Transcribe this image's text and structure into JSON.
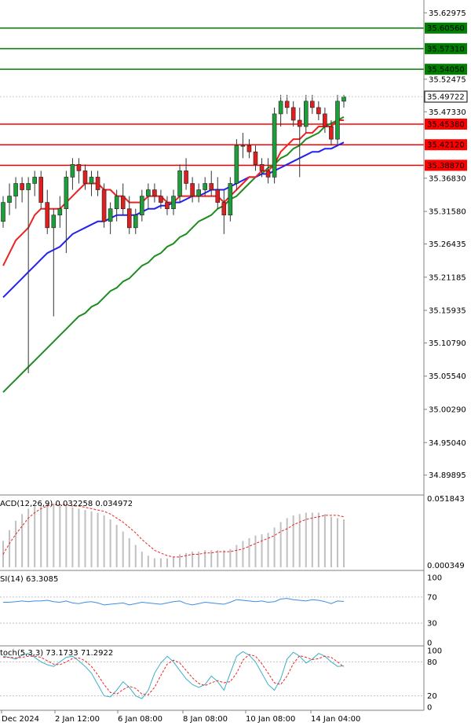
{
  "chart_data": {
    "type": "candlestick",
    "main": {
      "ylim": [
        34.87,
        35.65
      ],
      "y_ticks": [
        "35.62975",
        "35.52475",
        "35.47330",
        "35.36830",
        "35.31580",
        "35.26435",
        "35.21185",
        "35.15935",
        "35.10790",
        "35.05540",
        "35.00290",
        "34.95040",
        "34.89895"
      ],
      "hidden_tick": "35.57725",
      "level_lines": [
        {
          "label": "35.60560",
          "value": 35.6056,
          "color": "#008000"
        },
        {
          "label": "35.57310",
          "value": 35.5731,
          "color": "#008000"
        },
        {
          "label": "35.54050",
          "value": 35.5405,
          "color": "#008000"
        },
        {
          "label": "35.45380",
          "value": 35.4538,
          "color": "#ff0000"
        },
        {
          "label": "35.42120",
          "value": 35.4212,
          "color": "#ff0000"
        },
        {
          "label": "35.38870",
          "value": 35.3887,
          "color": "#ff0000"
        }
      ],
      "current_price": {
        "label": "35.49722",
        "value": 35.49722
      },
      "candles": [
        [
          35.3,
          35.34,
          35.29,
          35.33
        ],
        [
          35.33,
          35.36,
          35.31,
          35.34
        ],
        [
          35.34,
          35.37,
          35.32,
          35.36
        ],
        [
          35.36,
          35.37,
          35.33,
          35.35
        ],
        [
          35.35,
          35.37,
          35.06,
          35.36
        ],
        [
          35.36,
          35.38,
          35.34,
          35.37
        ],
        [
          35.37,
          35.38,
          35.32,
          35.33
        ],
        [
          35.33,
          35.35,
          35.28,
          35.29
        ],
        [
          35.29,
          35.32,
          35.15,
          35.31
        ],
        [
          35.31,
          35.34,
          35.29,
          35.32
        ],
        [
          35.32,
          35.38,
          35.25,
          35.37
        ],
        [
          35.37,
          35.4,
          35.35,
          35.39
        ],
        [
          35.39,
          35.4,
          35.36,
          35.38
        ],
        [
          35.38,
          35.39,
          35.35,
          35.36
        ],
        [
          35.36,
          35.38,
          35.34,
          35.37
        ],
        [
          35.37,
          35.38,
          35.34,
          35.35
        ],
        [
          35.35,
          35.36,
          35.29,
          35.3
        ],
        [
          35.3,
          35.33,
          35.28,
          35.32
        ],
        [
          35.32,
          35.35,
          35.3,
          35.34
        ],
        [
          35.34,
          35.36,
          35.31,
          35.32
        ],
        [
          35.32,
          35.34,
          35.28,
          35.29
        ],
        [
          35.29,
          35.32,
          35.28,
          35.31
        ],
        [
          35.31,
          35.35,
          35.3,
          35.34
        ],
        [
          35.34,
          35.36,
          35.32,
          35.35
        ],
        [
          35.35,
          35.36,
          35.33,
          35.34
        ],
        [
          35.34,
          35.35,
          35.32,
          35.33
        ],
        [
          35.33,
          35.34,
          35.31,
          35.32
        ],
        [
          35.32,
          35.35,
          35.31,
          35.34
        ],
        [
          35.34,
          35.39,
          35.33,
          35.38
        ],
        [
          35.38,
          35.4,
          35.35,
          35.36
        ],
        [
          35.36,
          35.37,
          35.33,
          35.34
        ],
        [
          35.34,
          35.36,
          35.33,
          35.35
        ],
        [
          35.35,
          35.37,
          35.34,
          35.36
        ],
        [
          35.36,
          35.38,
          35.34,
          35.35
        ],
        [
          35.35,
          35.37,
          35.32,
          35.33
        ],
        [
          35.33,
          35.35,
          35.28,
          35.31
        ],
        [
          35.31,
          35.37,
          35.3,
          35.36
        ],
        [
          35.36,
          35.43,
          35.35,
          35.42
        ],
        [
          35.42,
          35.44,
          35.4,
          35.42
        ],
        [
          35.42,
          35.43,
          35.4,
          35.41
        ],
        [
          35.41,
          35.42,
          35.38,
          35.39
        ],
        [
          35.39,
          35.4,
          35.37,
          35.38
        ],
        [
          35.38,
          35.4,
          35.36,
          35.37
        ],
        [
          35.37,
          35.48,
          35.36,
          35.47
        ],
        [
          35.47,
          35.5,
          35.45,
          35.49
        ],
        [
          35.49,
          35.5,
          35.47,
          35.48
        ],
        [
          35.48,
          35.49,
          35.45,
          35.46
        ],
        [
          35.46,
          35.48,
          35.37,
          35.45
        ],
        [
          35.45,
          35.5,
          35.44,
          35.49
        ],
        [
          35.49,
          35.5,
          35.47,
          35.48
        ],
        [
          35.48,
          35.49,
          35.46,
          35.47
        ],
        [
          35.47,
          35.48,
          35.44,
          35.45
        ],
        [
          35.45,
          35.46,
          35.42,
          35.43
        ],
        [
          35.43,
          35.5,
          35.42,
          35.49
        ],
        [
          35.49,
          35.5,
          35.48,
          35.497
        ]
      ],
      "ma_fast": [
        35.23,
        35.25,
        35.27,
        35.28,
        35.29,
        35.31,
        35.32,
        35.32,
        35.32,
        35.32,
        35.33,
        35.34,
        35.35,
        35.36,
        35.36,
        35.36,
        35.35,
        35.35,
        35.34,
        35.34,
        35.33,
        35.33,
        35.33,
        35.34,
        35.34,
        35.34,
        35.33,
        35.33,
        35.34,
        35.34,
        35.34,
        35.34,
        35.34,
        35.34,
        35.34,
        35.33,
        35.34,
        35.35,
        35.36,
        35.37,
        35.37,
        35.38,
        35.38,
        35.39,
        35.41,
        35.42,
        35.43,
        35.43,
        35.44,
        35.44,
        35.45,
        35.45,
        35.45,
        35.46,
        35.46
      ],
      "ma_mid": [
        35.18,
        35.19,
        35.2,
        35.21,
        35.22,
        35.23,
        35.24,
        35.25,
        35.255,
        35.26,
        35.27,
        35.28,
        35.285,
        35.29,
        35.295,
        35.3,
        35.3,
        35.305,
        35.31,
        35.31,
        35.31,
        35.31,
        35.315,
        35.32,
        35.32,
        35.325,
        35.325,
        35.33,
        35.33,
        35.335,
        35.34,
        35.34,
        35.345,
        35.35,
        35.35,
        35.35,
        35.355,
        35.36,
        35.365,
        35.37,
        35.37,
        35.375,
        35.375,
        35.38,
        35.385,
        35.39,
        35.395,
        35.4,
        35.405,
        35.41,
        35.41,
        35.415,
        35.415,
        35.42,
        35.425
      ],
      "ma_slow": [
        35.03,
        35.04,
        35.05,
        35.06,
        35.07,
        35.08,
        35.09,
        35.1,
        35.11,
        35.12,
        35.13,
        35.14,
        35.15,
        35.155,
        35.165,
        35.17,
        35.18,
        35.19,
        35.195,
        35.205,
        35.21,
        35.22,
        35.23,
        35.235,
        35.245,
        35.25,
        35.26,
        35.265,
        35.275,
        35.28,
        35.29,
        35.3,
        35.305,
        35.31,
        35.32,
        35.325,
        35.335,
        35.34,
        35.35,
        35.36,
        35.37,
        35.375,
        35.385,
        35.39,
        35.4,
        35.405,
        35.415,
        35.42,
        35.43,
        35.435,
        35.44,
        35.45,
        35.455,
        35.46,
        35.465
      ]
    },
    "macd": {
      "title": "ACD(12,26,9) 0.032258 0.034972",
      "ticks": [
        "0.051843",
        "0.000349"
      ],
      "ylim": [
        0.000349,
        0.051843
      ],
      "histogram": [
        0.02,
        0.028,
        0.035,
        0.04,
        0.044,
        0.046,
        0.047,
        0.048,
        0.048,
        0.047,
        0.046,
        0.045,
        0.044,
        0.043,
        0.042,
        0.041,
        0.039,
        0.036,
        0.032,
        0.027,
        0.022,
        0.017,
        0.012,
        0.009,
        0.007,
        0.007,
        0.007,
        0.008,
        0.01,
        0.011,
        0.012,
        0.012,
        0.013,
        0.013,
        0.013,
        0.013,
        0.014,
        0.017,
        0.02,
        0.022,
        0.024,
        0.025,
        0.026,
        0.03,
        0.034,
        0.037,
        0.039,
        0.04,
        0.041,
        0.041,
        0.041,
        0.04,
        0.038,
        0.037,
        0.036
      ],
      "signal": [
        0.01,
        0.018,
        0.025,
        0.031,
        0.037,
        0.041,
        0.044,
        0.046,
        0.047,
        0.047,
        0.047,
        0.046,
        0.046,
        0.045,
        0.044,
        0.043,
        0.042,
        0.04,
        0.037,
        0.034,
        0.03,
        0.026,
        0.021,
        0.017,
        0.013,
        0.011,
        0.009,
        0.008,
        0.008,
        0.009,
        0.01,
        0.01,
        0.011,
        0.011,
        0.012,
        0.012,
        0.012,
        0.013,
        0.014,
        0.016,
        0.018,
        0.02,
        0.022,
        0.024,
        0.027,
        0.029,
        0.032,
        0.034,
        0.036,
        0.037,
        0.038,
        0.039,
        0.039,
        0.039,
        0.038
      ]
    },
    "rsi": {
      "title": "SI(14) 63.3085",
      "ticks": [
        "100",
        "70",
        "30",
        "0"
      ],
      "ylim": [
        0,
        100
      ],
      "values": [
        62,
        62,
        63,
        64,
        63,
        64,
        64,
        65,
        63,
        62,
        64,
        61,
        60,
        62,
        63,
        61,
        58,
        59,
        60,
        61,
        58,
        60,
        62,
        61,
        60,
        59,
        61,
        63,
        64,
        60,
        58,
        60,
        62,
        61,
        60,
        59,
        62,
        66,
        65,
        64,
        63,
        64,
        62,
        63,
        67,
        68,
        66,
        65,
        64,
        66,
        65,
        63,
        60,
        64,
        63.3
      ]
    },
    "stoch": {
      "title": "toch(5,3,3) 73.1733 71.2922",
      "ticks": [
        "100",
        "80",
        "20",
        "0"
      ],
      "ylim": [
        0,
        100
      ],
      "k": [
        90,
        88,
        85,
        92,
        95,
        88,
        80,
        75,
        72,
        80,
        88,
        90,
        82,
        72,
        60,
        40,
        20,
        18,
        30,
        45,
        35,
        20,
        15,
        30,
        60,
        78,
        90,
        80,
        65,
        50,
        40,
        35,
        40,
        55,
        45,
        30,
        60,
        90,
        98,
        92,
        80,
        60,
        40,
        30,
        50,
        85,
        97,
        90,
        78,
        85,
        95,
        90,
        80,
        72,
        73
      ],
      "d": [
        88,
        88,
        87,
        88,
        90,
        90,
        88,
        82,
        76,
        75,
        80,
        86,
        87,
        82,
        72,
        57,
        40,
        26,
        23,
        31,
        37,
        33,
        23,
        22,
        35,
        56,
        76,
        83,
        78,
        65,
        52,
        42,
        38,
        43,
        47,
        43,
        45,
        60,
        83,
        93,
        90,
        77,
        60,
        43,
        40,
        55,
        77,
        91,
        88,
        84,
        86,
        90,
        88,
        80,
        71
      ]
    },
    "x_ticks": [
      "Dec 2024",
      "2 Jan 12:00",
      "6 Jan 08:00",
      "8 Jan 08:00",
      "10 Jan 08:00",
      "14 Jan 04:00"
    ]
  }
}
